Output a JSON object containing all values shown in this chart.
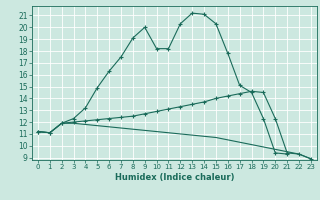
{
  "title": "",
  "xlabel": "Humidex (Indice chaleur)",
  "bg_color": "#cce8e0",
  "grid_color": "#ffffff",
  "line_color": "#1a6b5a",
  "xlim": [
    -0.5,
    23.5
  ],
  "ylim": [
    8.8,
    21.8
  ],
  "xticks": [
    0,
    1,
    2,
    3,
    4,
    5,
    6,
    7,
    8,
    9,
    10,
    11,
    12,
    13,
    14,
    15,
    16,
    17,
    18,
    19,
    20,
    21,
    22,
    23
  ],
  "yticks": [
    9,
    10,
    11,
    12,
    13,
    14,
    15,
    16,
    17,
    18,
    19,
    20,
    21
  ],
  "line1_x": [
    0,
    1,
    2,
    3,
    4,
    5,
    6,
    7,
    8,
    9,
    10,
    11,
    12,
    13,
    14,
    15,
    16,
    17,
    18,
    19,
    20,
    21
  ],
  "line1_y": [
    11.2,
    11.1,
    11.9,
    12.3,
    13.2,
    14.9,
    16.3,
    17.5,
    19.1,
    20.0,
    18.2,
    18.2,
    20.3,
    21.2,
    21.1,
    20.3,
    17.8,
    15.1,
    14.5,
    12.3,
    9.4,
    9.3
  ],
  "line2_x": [
    0,
    1,
    2,
    3,
    4,
    5,
    6,
    7,
    8,
    9,
    10,
    11,
    12,
    13,
    14,
    15,
    16,
    17,
    18,
    19,
    20,
    21,
    22,
    23
  ],
  "line2_y": [
    11.2,
    11.1,
    11.9,
    12.0,
    12.1,
    12.2,
    12.3,
    12.4,
    12.5,
    12.7,
    12.9,
    13.1,
    13.3,
    13.5,
    13.7,
    14.0,
    14.2,
    14.4,
    14.6,
    14.5,
    12.3,
    9.4,
    9.3,
    8.9
  ],
  "line3_x": [
    0,
    1,
    2,
    3,
    4,
    5,
    6,
    7,
    8,
    9,
    10,
    11,
    12,
    13,
    14,
    15,
    16,
    17,
    18,
    19,
    20,
    21,
    22,
    23
  ],
  "line3_y": [
    11.2,
    11.1,
    11.9,
    11.9,
    11.8,
    11.7,
    11.6,
    11.5,
    11.4,
    11.3,
    11.2,
    11.1,
    11.0,
    10.9,
    10.8,
    10.7,
    10.5,
    10.3,
    10.1,
    9.9,
    9.7,
    9.5,
    9.3,
    8.9
  ]
}
